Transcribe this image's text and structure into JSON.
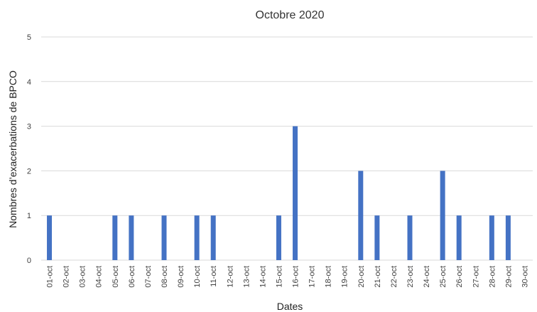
{
  "chart_data": {
    "type": "bar",
    "title": "Octobre 2020",
    "x_label": "Dates",
    "y_label": "Nombres d’exacerbations de BPCO",
    "categories": [
      "01-oct",
      "02-oct",
      "03-oct",
      "04-oct",
      "05-oct",
      "06-oct",
      "07-oct",
      "08-oct",
      "09-oct",
      "10-oct",
      "11-oct",
      "12-oct",
      "13-oct",
      "14-oct",
      "15-oct",
      "16-oct",
      "17-oct",
      "18-oct",
      "19-oct",
      "20-oct",
      "21-oct",
      "22-oct",
      "23-oct",
      "24-oct",
      "25-oct",
      "26-oct",
      "27-oct",
      "28-oct",
      "29-oct",
      "30-oct"
    ],
    "values": [
      1,
      0,
      0,
      0,
      1,
      1,
      0,
      1,
      0,
      1,
      1,
      0,
      0,
      0,
      1,
      3,
      0,
      0,
      0,
      2,
      1,
      0,
      1,
      0,
      2,
      1,
      0,
      1,
      1,
      0
    ],
    "color": "#4472c4",
    "ylim": [
      0,
      5
    ],
    "yticks": [
      0,
      1,
      2,
      3,
      4,
      5
    ],
    "grid": true
  }
}
